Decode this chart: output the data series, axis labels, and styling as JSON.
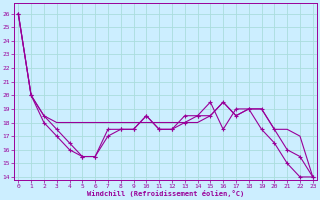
{
  "xlabel": "Windchill (Refroidissement éolien,°C)",
  "background_color": "#cceeff",
  "grid_color": "#aadddd",
  "line_color": "#990099",
  "label_color": "#990099",
  "x_ticks": [
    0,
    1,
    2,
    3,
    4,
    5,
    6,
    7,
    8,
    9,
    10,
    11,
    12,
    13,
    14,
    15,
    16,
    17,
    18,
    19,
    20,
    21,
    22,
    23
  ],
  "y_ticks": [
    14,
    15,
    16,
    17,
    18,
    19,
    20,
    21,
    22,
    23,
    24,
    25,
    26
  ],
  "xlim": [
    -0.3,
    23.3
  ],
  "ylim": [
    13.8,
    26.8
  ],
  "series": [
    {
      "x": [
        0,
        1,
        2,
        3,
        4,
        5,
        6,
        7,
        8,
        9,
        10,
        11,
        12,
        13,
        14,
        15,
        16,
        17,
        18,
        19,
        20,
        21,
        22,
        23
      ],
      "y": [
        26,
        20,
        18.5,
        18,
        18,
        18,
        18,
        18,
        18,
        18,
        18,
        18,
        18,
        18,
        18,
        18.5,
        19.5,
        18.5,
        19,
        19,
        17.5,
        17.5,
        17,
        14
      ],
      "marker": null
    },
    {
      "x": [
        0,
        1,
        2,
        3,
        4,
        5,
        6,
        7,
        8,
        9,
        10,
        11,
        12,
        13,
        14,
        15,
        16,
        17,
        18,
        19,
        20,
        21,
        22,
        23
      ],
      "y": [
        26,
        20,
        18.5,
        17.5,
        16.5,
        15.5,
        15.5,
        17.0,
        17.5,
        17.5,
        18.5,
        17.5,
        17.5,
        18.0,
        18.5,
        18.5,
        19.5,
        18.5,
        19.0,
        19.0,
        17.5,
        16.0,
        15.5,
        14
      ],
      "marker": "+"
    },
    {
      "x": [
        0,
        1,
        2,
        3,
        4,
        5,
        6,
        7,
        8,
        9,
        10,
        11,
        12,
        13,
        14,
        15,
        16,
        17,
        18,
        19,
        20,
        21,
        22,
        23
      ],
      "y": [
        26,
        20,
        18.0,
        17.0,
        16.0,
        15.5,
        15.5,
        17.5,
        17.5,
        17.5,
        18.5,
        17.5,
        17.5,
        18.5,
        18.5,
        19.5,
        17.5,
        19.0,
        19.0,
        17.5,
        16.5,
        15.0,
        14.0,
        14
      ],
      "marker": "+"
    }
  ]
}
